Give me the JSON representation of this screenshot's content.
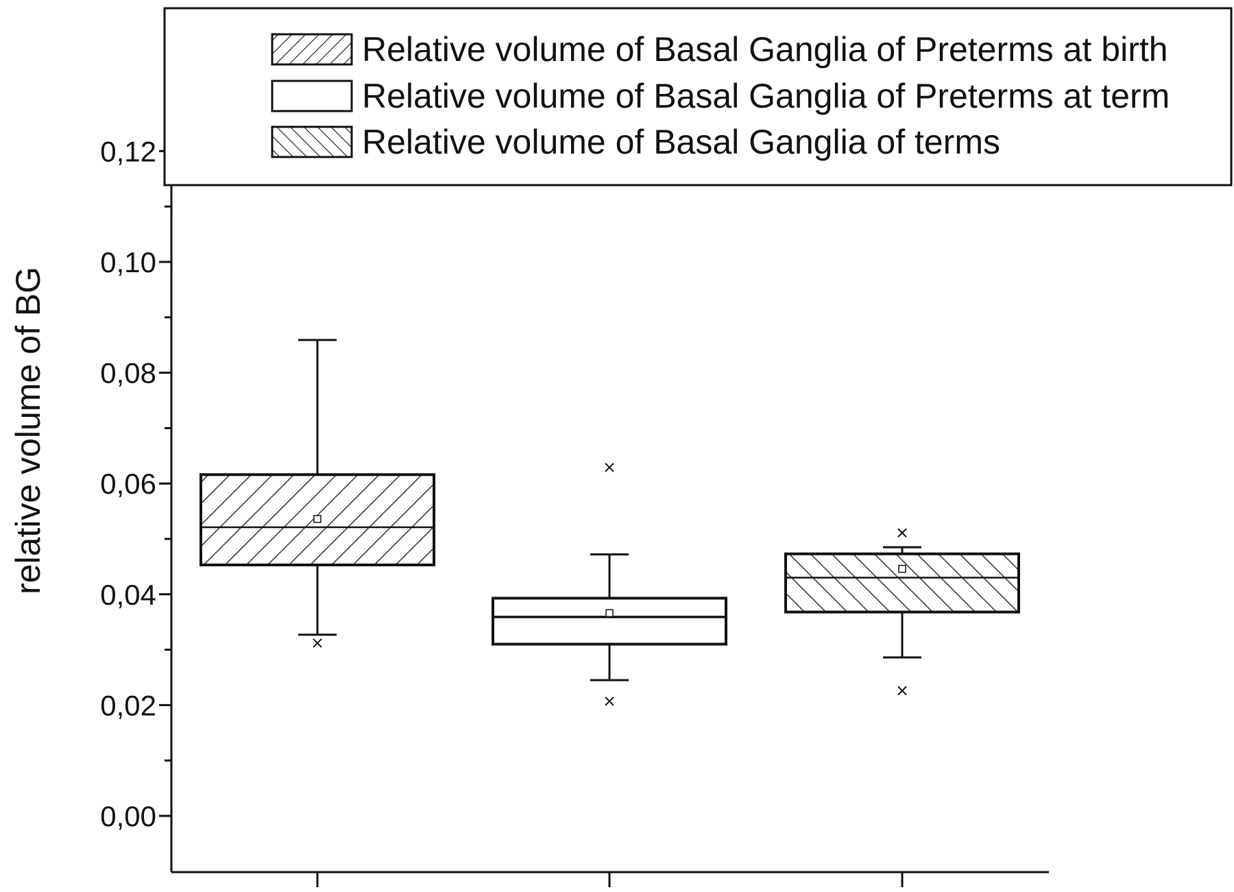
{
  "chart_data": {
    "type": "box",
    "title": "",
    "xlabel": "",
    "ylabel": "relative volume of BG",
    "ylim": [
      -0.01,
      0.135
    ],
    "y_ticks": [
      "0,12",
      "0,10",
      "0,08",
      "0,06",
      "0,04",
      "0,02",
      "0,00"
    ],
    "y_tick_values": [
      0.12,
      0.1,
      0.08,
      0.06,
      0.04,
      0.02,
      0.0
    ],
    "legend_placement": "top",
    "grid": false,
    "series": [
      {
        "name": "Relative volume of Basal Ganglia of Preterms at birth",
        "pattern": "hatch-forward",
        "whisker_low": 0.0327,
        "q1": 0.0453,
        "median": 0.0521,
        "mean": 0.0536,
        "q3": 0.0616,
        "whisker_high": 0.0859,
        "outliers": [
          0.0312
        ]
      },
      {
        "name": "Relative volume of Basal Ganglia of Preterms at term",
        "pattern": "none",
        "whisker_low": 0.0245,
        "q1": 0.031,
        "median": 0.0359,
        "mean": 0.0366,
        "q3": 0.0393,
        "whisker_high": 0.0472,
        "outliers": [
          0.0629,
          0.0207
        ]
      },
      {
        "name": "Relative volume of Basal Ganglia of terms",
        "pattern": "hatch-backward",
        "whisker_low": 0.0286,
        "q1": 0.0368,
        "median": 0.043,
        "mean": 0.0446,
        "q3": 0.0473,
        "whisker_high": 0.0485,
        "outliers": [
          0.0511,
          0.0226
        ]
      }
    ]
  },
  "colors": {
    "ink": "#111111",
    "background": "#ffffff"
  }
}
